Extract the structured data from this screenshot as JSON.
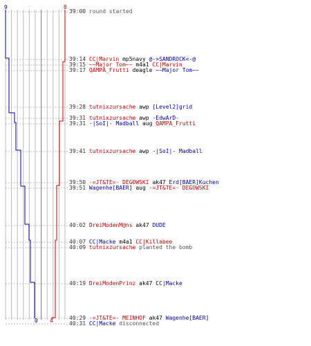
{
  "colors": {
    "team_ct": "#0000b0",
    "team_t": "#cc0000",
    "grid": "#bbbbbb",
    "text": "#000000",
    "muted": "#555555"
  },
  "counters": {
    "top_left": "9",
    "top_right": "8",
    "bottom_left": "0",
    "bottom_right": "4"
  },
  "events": [
    {
      "time": "39:00",
      "parts": [
        {
          "text": "round started",
          "c": "grey"
        }
      ]
    },
    {
      "time": "39:14",
      "parts": [
        {
          "text": "CC|Marvin",
          "c": "red"
        },
        {
          "text": " mp5navy ",
          "c": "txt"
        },
        {
          "text": "@->SANDROCK<-@",
          "c": "blue"
        }
      ]
    },
    {
      "time": "39:15",
      "parts": [
        {
          "text": "~~Major Tom~~",
          "c": "red"
        },
        {
          "text": " m4a1 ",
          "c": "txt"
        },
        {
          "text": "CC|Marvin",
          "c": "red"
        }
      ]
    },
    {
      "time": "39:17",
      "parts": [
        {
          "text": "QAMPA_Frutti",
          "c": "red"
        },
        {
          "text": " deagle ",
          "c": "txt"
        },
        {
          "text": "~~Major Tom~~",
          "c": "blue"
        }
      ]
    },
    {
      "time": "39:28",
      "parts": [
        {
          "text": "tutnixzursache",
          "c": "red"
        },
        {
          "text": " awp ",
          "c": "txt"
        },
        {
          "text": "[Level2]grid",
          "c": "blue"
        }
      ]
    },
    {
      "time": "39:31",
      "parts": [
        {
          "text": "tutnixzursache",
          "c": "red"
        },
        {
          "text": " awp ",
          "c": "txt"
        },
        {
          "text": "-EdwArD-",
          "c": "blue"
        }
      ]
    },
    {
      "time": "39:31",
      "parts": [
        {
          "text": "-|SoI|- Madball",
          "c": "blue"
        },
        {
          "text": " aug ",
          "c": "txt"
        },
        {
          "text": "QAMPA_Frutti",
          "c": "red"
        }
      ]
    },
    {
      "time": "39:41",
      "parts": [
        {
          "text": "tutnixzursache",
          "c": "red"
        },
        {
          "text": " awp ",
          "c": "txt"
        },
        {
          "text": "-|SoI|- Madball",
          "c": "blue"
        }
      ]
    },
    {
      "time": "39:50",
      "parts": [
        {
          "text": "-=JT&TE=- DEGOWSKI",
          "c": "red"
        },
        {
          "text": " ak47 ",
          "c": "txt"
        },
        {
          "text": "Erd[BAER]Kuchen",
          "c": "blue"
        }
      ]
    },
    {
      "time": "39:51",
      "parts": [
        {
          "text": "Wagenhe[BAER]",
          "c": "blue"
        },
        {
          "text": " aug ",
          "c": "txt"
        },
        {
          "text": "-=JT&TE=- DEGOWSKI",
          "c": "red"
        }
      ]
    },
    {
      "time": "40:02",
      "parts": [
        {
          "text": "DreiModenM@ns",
          "c": "red"
        },
        {
          "text": " ak47 ",
          "c": "txt"
        },
        {
          "text": "DUDE",
          "c": "blue"
        }
      ]
    },
    {
      "time": "40:07",
      "parts": [
        {
          "text": "CC|Macke",
          "c": "blue"
        },
        {
          "text": " m4a1 ",
          "c": "txt"
        },
        {
          "text": "CC|Killabee",
          "c": "red"
        }
      ]
    },
    {
      "time": "40:09",
      "parts": [
        {
          "text": "tutnixzursache",
          "c": "red"
        },
        {
          "text": " planted the bomb",
          "c": "grey"
        }
      ]
    },
    {
      "time": "40:19",
      "parts": [
        {
          "text": "DreiModenPrinz",
          "c": "red"
        },
        {
          "text": " ak47 ",
          "c": "txt"
        },
        {
          "text": "CC|Macke",
          "c": "blue"
        }
      ]
    },
    {
      "time": "40:29",
      "parts": [
        {
          "text": "-=JT&TE=- MEINHOF",
          "c": "red"
        },
        {
          "text": " ak47 ",
          "c": "txt"
        },
        {
          "text": "Wagenhe[BAER]",
          "c": "blue"
        }
      ]
    },
    {
      "time": "40:31",
      "parts": [
        {
          "text": "CC|Macke",
          "c": "blue"
        },
        {
          "text": " disconnected",
          "c": "grey"
        }
      ]
    }
  ]
}
